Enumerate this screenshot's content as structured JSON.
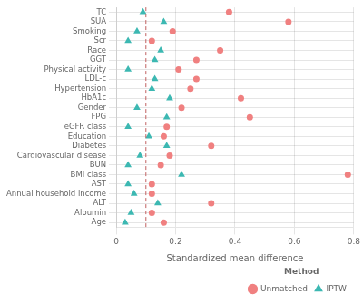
{
  "chart_data": {
    "type": "scatter",
    "categories": [
      "TC",
      "SUA",
      "Smoking",
      "Scr",
      "Race",
      "GGT",
      "Physical activity",
      "LDL-c",
      "Hypertension",
      "HbA1c",
      "Gender",
      "FPG",
      "eGFR class",
      "Education",
      "Diabetes",
      "Cardiovascular disease",
      "BUN",
      "BMI class",
      "AST",
      "Annual household income",
      "ALT",
      "Albumin",
      "Age"
    ],
    "series": [
      {
        "name": "Unmatched",
        "color": "#F08080",
        "marker": "circle",
        "values": [
          0.38,
          0.58,
          0.19,
          0.12,
          0.35,
          0.27,
          0.21,
          0.27,
          0.25,
          0.42,
          0.22,
          0.45,
          0.17,
          0.16,
          0.32,
          0.18,
          0.15,
          0.78,
          0.12,
          0.12,
          0.32,
          0.12,
          0.16
        ]
      },
      {
        "name": "IPTW",
        "color": "#3CB8B2",
        "marker": "triangle",
        "values": [
          0.09,
          0.16,
          0.07,
          0.04,
          0.15,
          0.13,
          0.04,
          0.13,
          0.12,
          0.18,
          0.07,
          0.17,
          0.04,
          0.11,
          0.17,
          0.08,
          0.04,
          0.22,
          0.04,
          0.06,
          0.14,
          0.05,
          0.03
        ]
      }
    ],
    "xlabel": "Standardized mean difference",
    "xlim": [
      0,
      0.8
    ],
    "xticks": [
      0,
      0.2,
      0.4,
      0.6,
      0.8
    ],
    "vlines": [
      {
        "x": 0.1,
        "color": "#C06060",
        "line_style": "dashed"
      }
    ],
    "grid": true,
    "legend": "lower right",
    "legend_title": "Method"
  }
}
